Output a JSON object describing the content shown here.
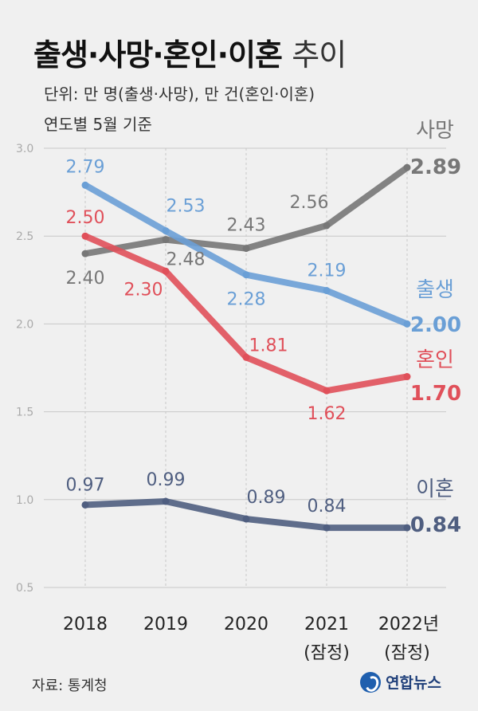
{
  "header": {
    "title_bold": "출생·사망·혼인·이혼",
    "title_light": "추이",
    "subtitle1": "단위: 만 명(출생·사망), 만 건(혼인·이혼)",
    "subtitle2": "연도별 5월 기준"
  },
  "footer": {
    "source": "자료: 통계청",
    "brand": "연합뉴스"
  },
  "colors": {
    "death": "#777777",
    "birth": "#6a9fd6",
    "marriage": "#e0505a",
    "divorce": "#4f5e80",
    "grid": "#c8c8c8",
    "axis_text": "#aaaaaa"
  },
  "chart_data": {
    "type": "line",
    "categories": [
      "2018",
      "2019",
      "2020",
      "2021",
      "2022년"
    ],
    "category_notes": [
      "",
      "",
      "",
      "(잠정)",
      "(잠정)"
    ],
    "yticks": [
      "3.0",
      "2.5",
      "2.0",
      "1.5",
      "1.0",
      "0.5"
    ],
    "ylim": [
      0.5,
      3.0
    ],
    "grid": true,
    "series": [
      {
        "name": "사망",
        "key": "death",
        "values": [
          2.4,
          2.48,
          2.43,
          2.56,
          2.89
        ],
        "labels": [
          "2.40",
          "2.48",
          "2.43",
          "2.56",
          "2.89"
        ]
      },
      {
        "name": "출생",
        "key": "birth",
        "values": [
          2.79,
          2.53,
          2.28,
          2.19,
          2.0
        ],
        "labels": [
          "2.79",
          "2.53",
          "2.28",
          "2.19",
          "2.00"
        ]
      },
      {
        "name": "혼인",
        "key": "marriage",
        "values": [
          2.5,
          2.3,
          1.81,
          1.62,
          1.7
        ],
        "labels": [
          "2.50",
          "2.30",
          "1.81",
          "1.62",
          "1.70"
        ]
      },
      {
        "name": "이혼",
        "key": "divorce",
        "values": [
          0.97,
          0.99,
          0.89,
          0.84,
          0.84
        ],
        "labels": [
          "0.97",
          "0.99",
          "0.89",
          "0.84",
          "0.84"
        ]
      }
    ]
  }
}
